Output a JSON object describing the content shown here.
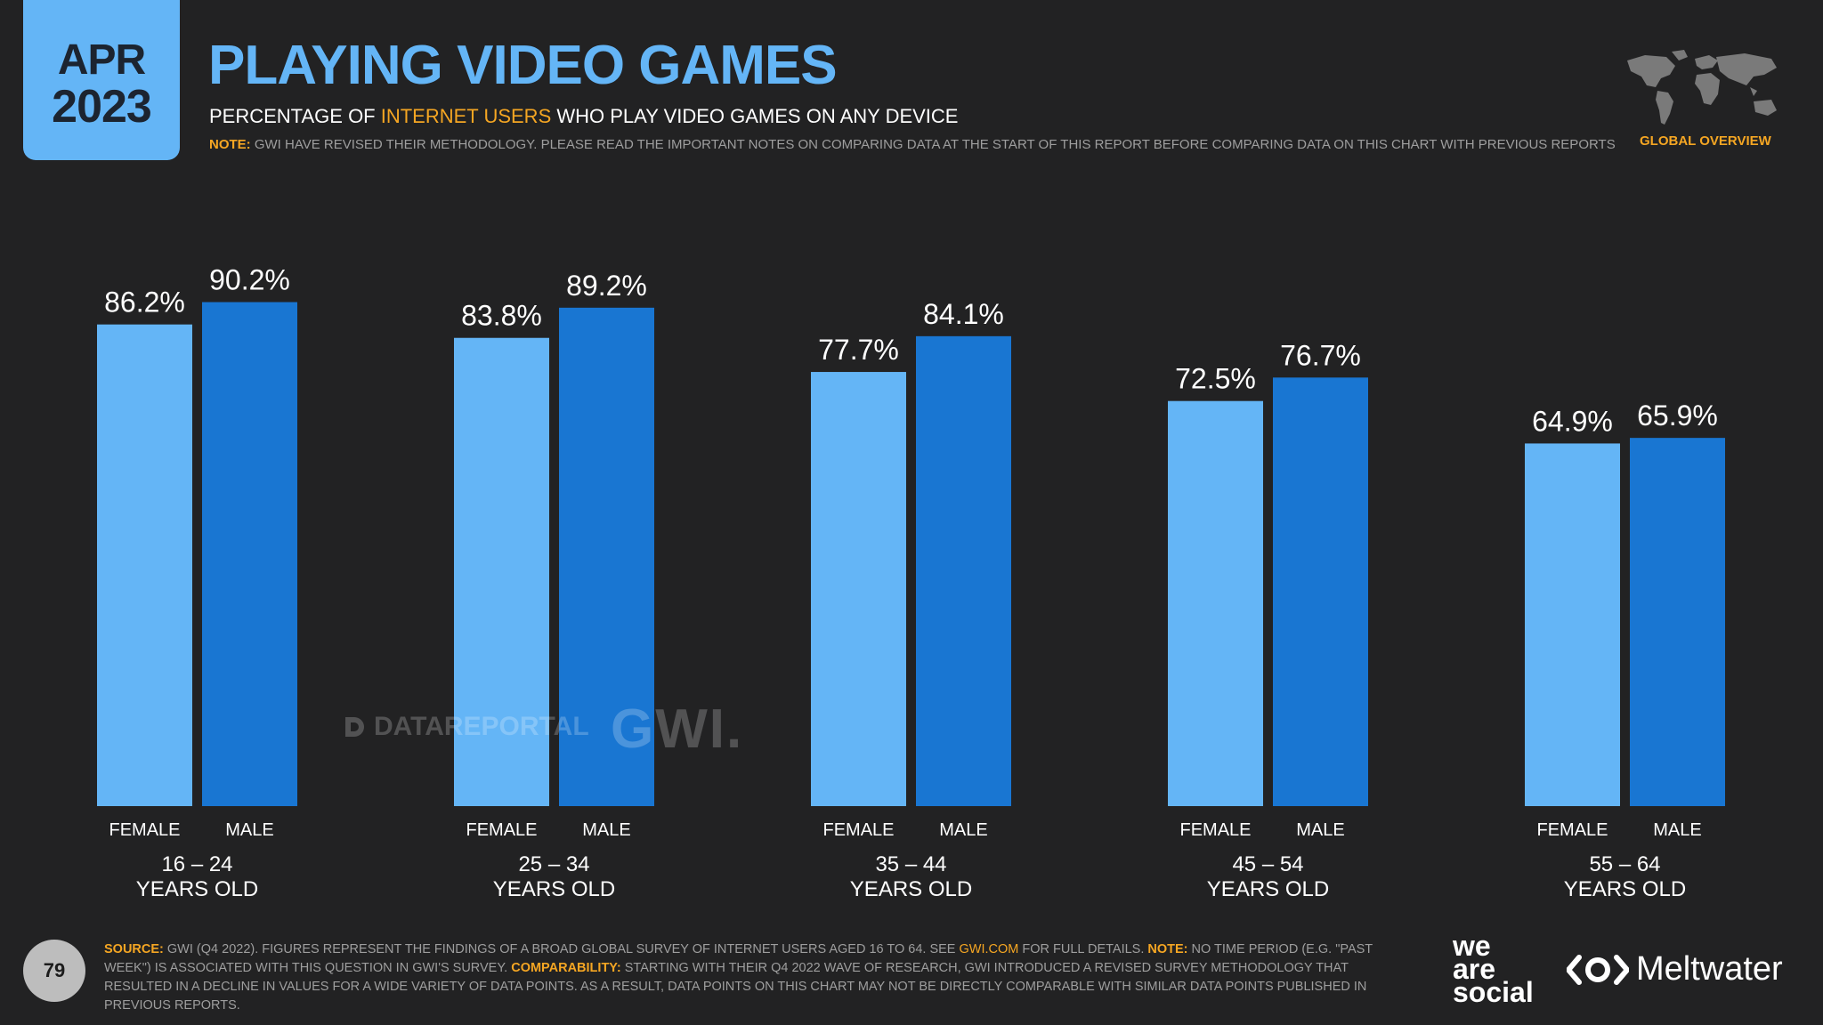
{
  "badge": {
    "month": "APR",
    "year": "2023"
  },
  "header": {
    "title": "PLAYING VIDEO GAMES",
    "subtitle_pre": "PERCENTAGE OF ",
    "subtitle_hl": "INTERNET USERS",
    "subtitle_post": " WHO PLAY VIDEO GAMES ON ANY DEVICE",
    "note_label": "NOTE:",
    "note_text": " GWI HAVE REVISED THEIR METHODOLOGY. PLEASE READ THE IMPORTANT NOTES ON COMPARING DATA AT THE START OF THIS REPORT BEFORE COMPARING DATA ON THIS CHART WITH PREVIOUS REPORTS"
  },
  "map": {
    "label": "GLOBAL OVERVIEW",
    "icon": "world-map-icon"
  },
  "colors": {
    "female": "#64b5f6",
    "male": "#1976d2",
    "accent": "#f5a623",
    "background": "#222223"
  },
  "chart_data": {
    "type": "bar",
    "categories": [
      "16 – 24 YEARS OLD",
      "25 – 34 YEARS OLD",
      "35 – 44 YEARS OLD",
      "45 – 54 YEARS OLD",
      "55 – 64 YEARS OLD"
    ],
    "category_lines": [
      [
        "16 – 24",
        "YEARS OLD"
      ],
      [
        "25 – 34",
        "YEARS OLD"
      ],
      [
        "35 – 44",
        "YEARS OLD"
      ],
      [
        "45 – 54",
        "YEARS OLD"
      ],
      [
        "55 – 64",
        "YEARS OLD"
      ]
    ],
    "series": [
      {
        "name": "FEMALE",
        "values": [
          86.2,
          83.8,
          77.7,
          72.5,
          64.9
        ],
        "labels": [
          "86.2%",
          "83.8%",
          "77.7%",
          "72.5%",
          "64.9%"
        ]
      },
      {
        "name": "MALE",
        "values": [
          90.2,
          89.2,
          84.1,
          76.7,
          65.9
        ],
        "labels": [
          "90.2%",
          "89.2%",
          "84.1%",
          "76.7%",
          "65.9%"
        ]
      }
    ],
    "ylim": [
      0,
      100
    ],
    "unit": "%",
    "grid": false,
    "legend": "none"
  },
  "watermark": {
    "datareportal": "DATAREPORTAL",
    "gwi": "GWI."
  },
  "footer": {
    "page_number": "79",
    "source_label": "SOURCE:",
    "source_text_1": " GWI (Q4 2022). FIGURES REPRESENT THE FINDINGS OF A BROAD GLOBAL SURVEY OF INTERNET USERS AGED 16 TO 64. SEE ",
    "source_link": "GWI.COM",
    "source_text_2": " FOR FULL DETAILS. ",
    "note_label": "NOTE:",
    "note_text": " NO TIME PERIOD (E.G. \"PAST WEEK\") IS ASSOCIATED WITH THIS QUESTION IN GWI'S SURVEY. ",
    "comparability_label": "COMPARABILITY:",
    "comparability_text": " STARTING WITH THEIR Q4 2022 WAVE OF RESEARCH, GWI INTRODUCED A REVISED SURVEY METHODOLOGY THAT RESULTED IN A DECLINE IN VALUES FOR A WIDE VARIETY OF DATA POINTS. AS A RESULT, DATA POINTS ON THIS CHART MAY NOT BE DIRECTLY COMPARABLE WITH SIMILAR DATA POINTS PUBLISHED IN PREVIOUS REPORTS."
  },
  "brands": {
    "we": "we",
    "are": "are",
    "social": "social",
    "meltwater": "Meltwater",
    "meltwater_icon": "meltwater-logo-icon"
  }
}
